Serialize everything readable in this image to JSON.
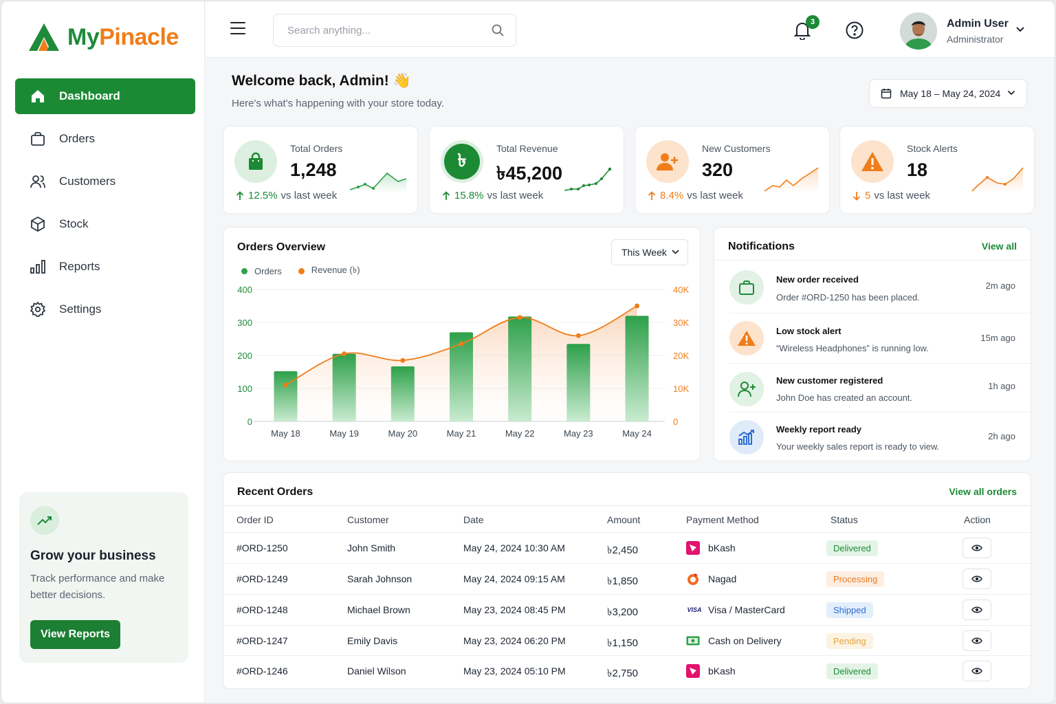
{
  "brand": {
    "name_part1": "My",
    "name_part2": "Pinacle",
    "green": "#1c8a35",
    "orange": "#f07d1a"
  },
  "sidebar": {
    "items": [
      {
        "label": "Dashboard",
        "icon": "home-icon",
        "active": true
      },
      {
        "label": "Orders",
        "icon": "bag-icon"
      },
      {
        "label": "Customers",
        "icon": "users-icon"
      },
      {
        "label": "Stock",
        "icon": "box-icon"
      },
      {
        "label": "Reports",
        "icon": "bar-chart-icon"
      },
      {
        "label": "Settings",
        "icon": "gear-icon"
      }
    ],
    "promo": {
      "title": "Grow your business",
      "text": "Track performance and make better decisions.",
      "button": "View Reports"
    }
  },
  "header": {
    "search_placeholder": "Search anything...",
    "notification_count": "3",
    "user_name": "Admin User",
    "user_role": "Administrator"
  },
  "welcome": {
    "title": "Welcome back, Admin! 👋",
    "subtitle": "Here's what's happening with your store today.",
    "date_range": "May 18 – May 24, 2024"
  },
  "stats": [
    {
      "label": "Total Orders",
      "value": "1,248",
      "delta_value": "12.5%",
      "delta_label": "vs last week",
      "direction": "up",
      "color": "#1c8a35"
    },
    {
      "label": "Total Revenue",
      "value": "৳45,200",
      "delta_value": "15.8%",
      "delta_label": "vs last week",
      "direction": "up",
      "color": "#1c8a35"
    },
    {
      "label": "New Customers",
      "value": "320",
      "delta_value": "8.4%",
      "delta_label": "vs last week",
      "direction": "up",
      "color": "#f07d1a"
    },
    {
      "label": "Stock Alerts",
      "value": "18",
      "delta_value": "5",
      "delta_label": "vs last week",
      "direction": "down",
      "color": "#f07d1a"
    }
  ],
  "orders_overview": {
    "title": "Orders Overview",
    "period": "This Week",
    "legend_orders": "Orders",
    "legend_revenue": "Revenue (৳)"
  },
  "chart_data": {
    "type": "bar",
    "categories": [
      "May 18",
      "May 19",
      "May 20",
      "May 21",
      "May 22",
      "May 23",
      "May 24"
    ],
    "series": [
      {
        "name": "Orders",
        "type": "bar",
        "axis": "left",
        "values": [
          152,
          205,
          167,
          270,
          318,
          235,
          320
        ],
        "color": "#2ea04a"
      },
      {
        "name": "Revenue (৳)",
        "type": "line",
        "axis": "right",
        "values": [
          11000,
          20500,
          18500,
          23500,
          31500,
          26000,
          35000
        ],
        "color": "#f07d1a"
      }
    ],
    "y_left": {
      "ticks": [
        "0",
        "100",
        "200",
        "300",
        "400"
      ],
      "range": [
        0,
        400
      ]
    },
    "y_right": {
      "ticks": [
        "0",
        "10K",
        "20K",
        "30K",
        "40K"
      ],
      "range": [
        0,
        40000
      ]
    },
    "grid": true,
    "legend": "top-left"
  },
  "notifications": {
    "title": "Notifications",
    "view_all": "View all",
    "items": [
      {
        "title": "New order received",
        "text": "Order #ORD-1250 has been placed.",
        "time": "2m ago",
        "icon": "bag-icon"
      },
      {
        "title": "Low stock alert",
        "text": "“Wireless Headphones” is running low.",
        "time": "15m ago",
        "icon": "warning-icon"
      },
      {
        "title": "New customer registered",
        "text": "John Doe has created an account.",
        "time": "1h ago",
        "icon": "user-plus-icon"
      },
      {
        "title": "Weekly report ready",
        "text": "Your weekly sales report is ready to view.",
        "time": "2h ago",
        "icon": "report-icon"
      }
    ]
  },
  "recent_orders": {
    "title": "Recent Orders",
    "view_all": "View all orders",
    "columns": [
      "Order ID",
      "Customer",
      "Date",
      "Amount",
      "Payment Method",
      "Status",
      "Action"
    ],
    "rows": [
      {
        "id": "#ORD-1250",
        "customer": "John Smith",
        "date": "May 24, 2024 10:30 AM",
        "amount": "৳2,450",
        "payment": "bKash",
        "pay_icon": "bkash-icon",
        "status": "Delivered"
      },
      {
        "id": "#ORD-1249",
        "customer": "Sarah Johnson",
        "date": "May 24, 2024 09:15 AM",
        "amount": "৳1,850",
        "payment": "Nagad",
        "pay_icon": "nagad-icon",
        "status": "Processing"
      },
      {
        "id": "#ORD-1248",
        "customer": "Michael Brown",
        "date": "May 23, 2024 08:45 PM",
        "amount": "৳3,200",
        "payment": "Visa / MasterCard",
        "pay_icon": "visa-icon",
        "pay_icon_text": "VISA",
        "status": "Shipped"
      },
      {
        "id": "#ORD-1247",
        "customer": "Emily Davis",
        "date": "May 23, 2024 06:20 PM",
        "amount": "৳1,150",
        "payment": "Cash on Delivery",
        "pay_icon": "cash-icon",
        "status": "Pending"
      },
      {
        "id": "#ORD-1246",
        "customer": "Daniel Wilson",
        "date": "May 23, 2024 05:10 PM",
        "amount": "৳2,750",
        "payment": "bKash",
        "pay_icon": "bkash-icon",
        "status": "Delivered"
      }
    ]
  },
  "status_colors": {
    "Delivered": {
      "bg": "#e3f4e6",
      "fg": "#1c8a35"
    },
    "Processing": {
      "bg": "#fdeee2",
      "fg": "#ea7a21"
    },
    "Shipped": {
      "bg": "#e3eefb",
      "fg": "#2d6fd1"
    },
    "Pending": {
      "bg": "#fdf3e2",
      "fg": "#e8a23a"
    }
  }
}
